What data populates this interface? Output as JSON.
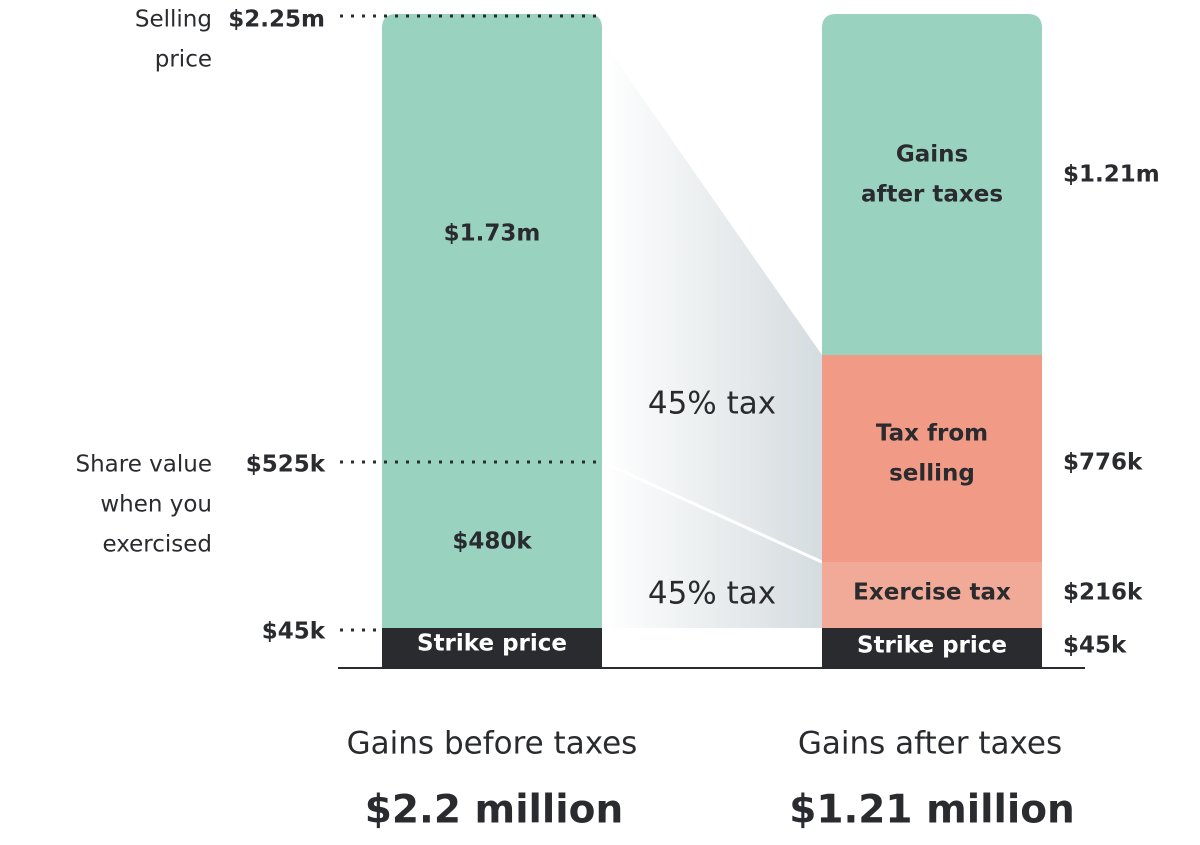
{
  "axis_labels": {
    "selling_price": {
      "lines": [
        "Selling",
        "price"
      ],
      "value": "$2.25m"
    },
    "share_value": {
      "lines": [
        "Share value",
        "when you",
        "exercised"
      ],
      "value": "$525k"
    },
    "strike": {
      "value": "$45k"
    }
  },
  "before": {
    "gain_top": "$1.73m",
    "gain_bottom": "$480k",
    "strike": "Strike price",
    "caption": "Gains before taxes",
    "total": "$2.2 million"
  },
  "after": {
    "segments": [
      {
        "lines": [
          "Gains",
          "after taxes"
        ],
        "value": "$1.21m"
      },
      {
        "lines": [
          "Tax from",
          "selling"
        ],
        "value": "$776k"
      },
      {
        "lines": [
          "Exercise tax"
        ],
        "value": "$216k"
      },
      {
        "lines": [
          "Strike price"
        ],
        "value": "$45k"
      }
    ],
    "caption": "Gains after taxes",
    "total": "$1.21 million"
  },
  "tax_rates": [
    "45% tax",
    "45% tax"
  ]
}
